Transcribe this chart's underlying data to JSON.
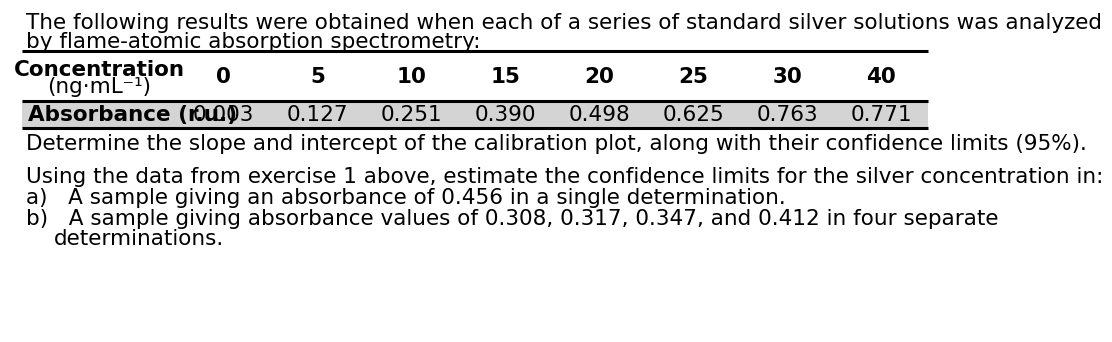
{
  "intro_line1": "The following results were obtained when each of a series of standard silver solutions was analyzed",
  "intro_line2": "by flame-atomic absorption spectrometry:",
  "table": {
    "header_col_label_line1": "Concentration",
    "header_col_label_line2": "(ng·mL⁻¹)",
    "concentrations": [
      "0",
      "5",
      "10",
      "15",
      "20",
      "25",
      "30",
      "40"
    ],
    "absorbance_label": "Absorbance (r.u.)",
    "absorbance_values": [
      "0.003",
      "0.127",
      "0.251",
      "0.390",
      "0.498",
      "0.625",
      "0.763",
      "0.771"
    ]
  },
  "question1": "Determine the slope and intercept of the calibration plot, along with their confidence limits (95%).",
  "question2_intro": "Using the data from exercise 1 above, estimate the confidence limits for the silver concentration in:",
  "question2a": "A sample giving an absorbance of 0.456 in a single determination.",
  "question2b": "A sample giving absorbance values of 0.308, 0.317, 0.347, and 0.412 in four separate",
  "question2b_cont": "determinations.",
  "bg_color": "#ffffff",
  "text_color": "#000000",
  "table_header_bg": "#d4d4d4",
  "font_size": 15.5
}
